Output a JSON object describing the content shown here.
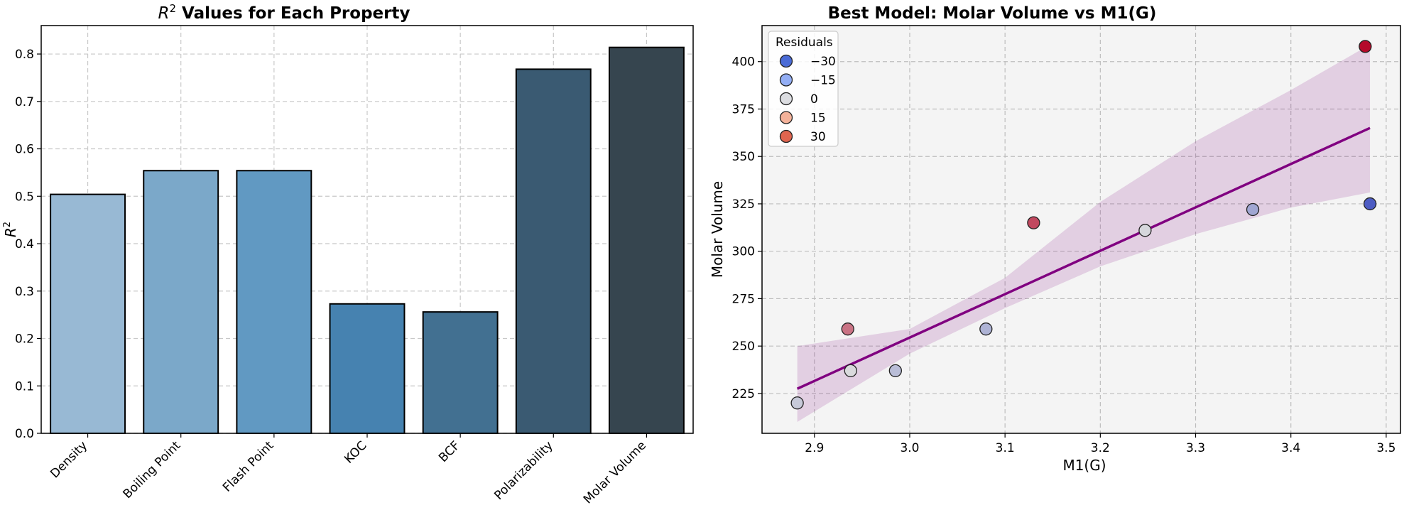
{
  "chart_data": [
    {
      "type": "bar",
      "title_prefix": "R",
      "title_sup": "2",
      "title_rest": " Values for Each Property",
      "xlabel": "",
      "ylabel_base": "R",
      "ylabel_sup": "2",
      "categories": [
        "Density",
        "Boiling Point",
        "Flash Point",
        "KOC",
        "BCF",
        "Polarizability",
        "Molar Volume"
      ],
      "values": [
        0.504,
        0.554,
        0.554,
        0.273,
        0.256,
        0.768,
        0.814
      ],
      "colors": [
        "#98b9d4",
        "#7ba8c9",
        "#6199c2",
        "#4682b0",
        "#427091",
        "#3a5a72",
        "#36454f"
      ],
      "ylim": [
        0,
        0.86
      ],
      "yticks": [
        "0.0",
        "0.1",
        "0.2",
        "0.3",
        "0.4",
        "0.5",
        "0.6",
        "0.7",
        "0.8"
      ],
      "grid": true
    },
    {
      "type": "scatter",
      "title": "Best Model: Molar Volume vs M1(G)",
      "xlabel": "M1(G)",
      "ylabel": "Molar Volume",
      "xlim": [
        2.845,
        3.515
      ],
      "ylim": [
        204,
        419
      ],
      "xticks": [
        "2.9",
        "3.0",
        "3.1",
        "3.2",
        "3.3",
        "3.4",
        "3.5"
      ],
      "yticks": [
        "225",
        "250",
        "275",
        "300",
        "325",
        "350",
        "375",
        "400"
      ],
      "grid": true,
      "points": [
        {
          "x": 2.882,
          "y": 220,
          "residual": -6
        },
        {
          "x": 2.935,
          "y": 259,
          "residual": 22
        },
        {
          "x": 2.938,
          "y": 237,
          "residual": -1
        },
        {
          "x": 2.985,
          "y": 237,
          "residual": -10
        },
        {
          "x": 3.08,
          "y": 259,
          "residual": -13
        },
        {
          "x": 3.13,
          "y": 315,
          "residual": 31
        },
        {
          "x": 3.247,
          "y": 311,
          "residual": -2
        },
        {
          "x": 3.36,
          "y": 322,
          "residual": -17
        },
        {
          "x": 3.478,
          "y": 408,
          "residual": 44
        },
        {
          "x": 3.483,
          "y": 325,
          "residual": -40
        }
      ],
      "fit_line": {
        "x": [
          2.882,
          3.483
        ],
        "y": [
          227.5,
          365.0
        ],
        "color": "#800080"
      },
      "band": {
        "x": [
          2.882,
          3.0,
          3.1,
          3.2,
          3.3,
          3.4,
          3.483
        ],
        "upper": [
          250,
          259,
          286,
          326,
          358,
          385,
          409
        ],
        "lower": [
          210,
          246,
          270,
          292,
          309,
          323,
          331
        ],
        "color": "#800080"
      },
      "legend": {
        "title": "Residuals",
        "placement": "top-left",
        "entries": [
          {
            "label": "−30",
            "color": "#4a6bd6"
          },
          {
            "label": "−15",
            "color": "#93aef5"
          },
          {
            "label": "0",
            "color": "#dcdde1"
          },
          {
            "label": "15",
            "color": "#f4b29a"
          },
          {
            "label": "30",
            "color": "#e0654f"
          }
        ]
      },
      "colorscale": {
        "min": -45,
        "max": 45,
        "low": "#3b4cc0",
        "mid": "#dddddd",
        "high": "#b40426"
      }
    }
  ]
}
